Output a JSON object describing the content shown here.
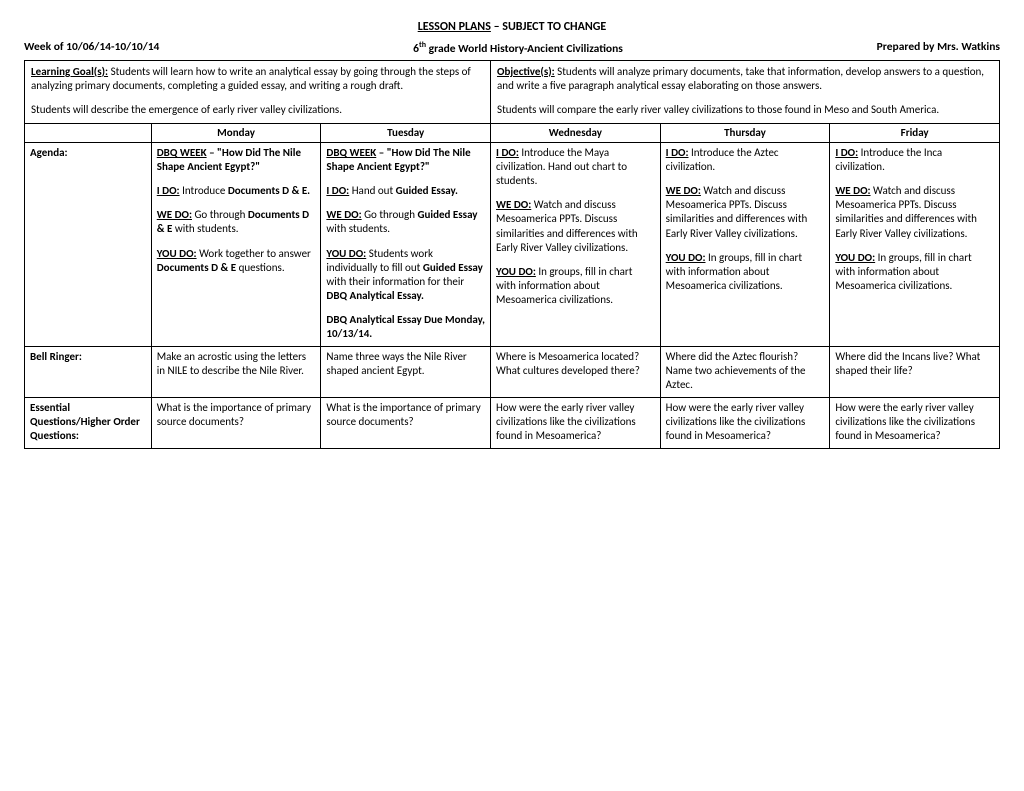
{
  "title_prefix": "LESSON PLANS",
  "title_suffix": " – SUBJECT TO CHANGE",
  "header": {
    "week": "Week of 10/06/14-10/10/14",
    "course_pre": "6",
    "course_sup": "th",
    "course_post": " grade World History-Ancient Civilizations",
    "prepared": "Prepared by Mrs. Watkins"
  },
  "goals": {
    "lg_label": "Learning Goal(s):",
    "lg_text": " Students will learn how to write an analytical essay by going through the steps of analyzing primary documents, completing a guided essay, and writing a rough draft.",
    "lg_text2": "Students will describe the emergence of early river valley civilizations.",
    "obj_label": "Objective(s):",
    "obj_text": " Students will analyze primary documents, take that information, develop answers to a question, and write a five paragraph analytical essay elaborating on those answers.",
    "obj_text2": "Students will compare the early river valley civilizations to those found in Meso and South America."
  },
  "days": {
    "mon": "Monday",
    "tue": "Tuesday",
    "wed": "Wednesday",
    "thu": "Thursday",
    "fri": "Friday"
  },
  "row_labels": {
    "agenda": "Agenda:",
    "bell": "Bell Ringer:",
    "eq": "Essential Questions/Higher Order Questions:"
  },
  "agenda": {
    "mon": {
      "l1a": "DBQ WEEK",
      "l1b": " – \"How Did The Nile Shape Ancient Egypt?\"",
      "ido_lbl": "I DO:",
      "ido": " Introduce ",
      "ido_b": "Documents D & E.",
      "wedo_lbl": "WE DO:",
      "wedo": " Go through ",
      "wedo_b": "Documents D & E",
      "wedo2": " with students.",
      "youdo_lbl": "YOU DO:",
      "youdo": " Work together to answer ",
      "youdo_b": "Documents D & E",
      "youdo2": " questions."
    },
    "tue": {
      "l1a": "DBQ WEEK",
      "l1b": " – \"How Did The Nile Shape Ancient Egypt?\"",
      "ido_lbl": "I DO:",
      "ido": " Hand out ",
      "ido_b": "Guided Essay.",
      "wedo_lbl": "WE DO:",
      "wedo": " Go through ",
      "wedo_b": "Guided Essay",
      "wedo2": " with students.",
      "youdo_lbl": "YOU DO:",
      "youdo": " Students work individually to fill out ",
      "youdo_b": "Guided Essay",
      "youdo2": " with their information for their ",
      "youdo_b2": "DBQ Analytical Essay.",
      "due": "DBQ Analytical Essay Due Monday, 10/13/14."
    },
    "wed": {
      "ido_lbl": "I DO:",
      "ido": " Introduce the Maya civilization. Hand out chart to students.",
      "wedo_lbl": "WE DO:",
      "wedo": " Watch and discuss Mesoamerica PPTs. Discuss similarities and differences with Early River Valley civilizations.",
      "youdo_lbl": "YOU DO:",
      "youdo": " In groups, fill in chart with information about Mesoamerica civilizations."
    },
    "thu": {
      "ido_lbl": "I DO:",
      "ido": " Introduce the Aztec civilization.",
      "wedo_lbl": "WE DO:",
      "wedo": " Watch and discuss Mesoamerica PPTs. Discuss similarities and differences with Early River Valley civilizations.",
      "youdo_lbl": "YOU DO:",
      "youdo": " In groups, fill in chart with information about Mesoamerica civilizations."
    },
    "fri": {
      "ido_lbl": "I DO:",
      "ido": " Introduce the Inca civilization.",
      "wedo_lbl": "WE DO:",
      "wedo": " Watch and discuss Mesoamerica PPTs. Discuss similarities and differences with Early River Valley civilizations.",
      "youdo_lbl": "YOU DO:",
      "youdo": " In groups, fill in chart with information about Mesoamerica civilizations."
    }
  },
  "bell": {
    "mon": "Make an acrostic using the letters in NILE to describe the Nile River.",
    "tue": "Name three ways the Nile River shaped ancient Egypt.",
    "wed": "Where is Mesoamerica located? What cultures developed there?",
    "thu": "Where did the Aztec flourish? Name two achievements of the Aztec.",
    "fri": "Where did the Incans live? What shaped their life?"
  },
  "eq": {
    "mon": "What is the importance of primary source documents?",
    "tue": "What is the importance of primary source documents?",
    "wed": "How were the early river valley civilizations like the civilizations found in Mesoamerica?",
    "thu": "How were the early river valley civilizations like the civilizations found in Mesoamerica?",
    "fri": "How were the early river valley civilizations like the civilizations found in Mesoamerica?"
  }
}
